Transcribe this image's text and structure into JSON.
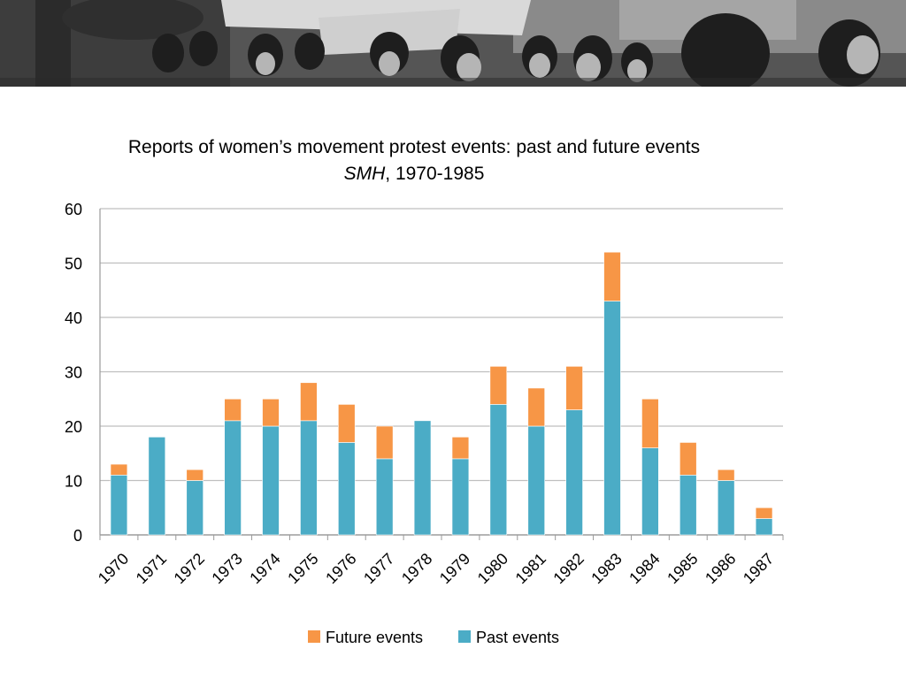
{
  "chart_data": {
    "type": "bar",
    "stacked": true,
    "title": "Reports of women’s movement protest events: past and future events",
    "subtitle_italic": "SMH",
    "subtitle_rest": ", 1970-1985",
    "xlabel": "",
    "ylabel": "",
    "categories": [
      "1970",
      "1971",
      "1972",
      "1973",
      "1974",
      "1975",
      "1976",
      "1977",
      "1978",
      "1979",
      "1980",
      "1981",
      "1982",
      "1983",
      "1984",
      "1985",
      "1986",
      "1987"
    ],
    "series": [
      {
        "name": "Past events",
        "color": "#4bacc6",
        "values": [
          11,
          18,
          10,
          21,
          20,
          21,
          17,
          14,
          21,
          14,
          24,
          20,
          23,
          43,
          16,
          11,
          10,
          3
        ]
      },
      {
        "name": "Future events",
        "color": "#f79646",
        "values": [
          2,
          0,
          2,
          4,
          5,
          7,
          7,
          6,
          0,
          4,
          7,
          7,
          8,
          9,
          9,
          6,
          2,
          2
        ]
      }
    ],
    "ylim": [
      0,
      60
    ],
    "yticks": [
      0,
      10,
      20,
      30,
      40,
      50,
      60
    ],
    "grid": true,
    "legend_position": "bottom",
    "legend_order": [
      "Future events",
      "Past events"
    ]
  },
  "banner": {
    "icon": "protest-photo"
  }
}
